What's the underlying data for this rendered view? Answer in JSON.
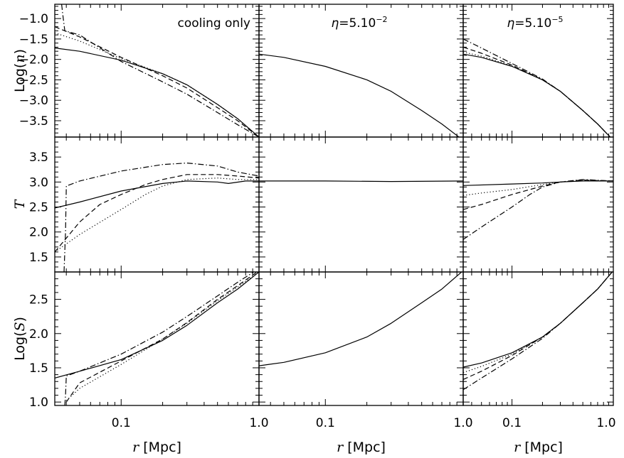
{
  "chart_data": {
    "type": "line",
    "layout": "3x3 grid of panels, shared x axis per column, shared y axis per row",
    "x_axis": {
      "label_var": "r",
      "label_unit": "[Mpc]",
      "scale": "log",
      "range": [
        0.033,
        1.0
      ],
      "ticks": [
        0.1,
        1.0
      ],
      "tick_labels": [
        "0.1",
        "1.0"
      ]
    },
    "columns": [
      {
        "title": "cooling only"
      },
      {
        "title_symbol": "η",
        "title_value": "=5.10",
        "title_exp": "−2"
      },
      {
        "title_symbol": "η",
        "title_value": "=5.10",
        "title_exp": "−5"
      }
    ],
    "rows": [
      {
        "ylabel_prefix": "Log(",
        "ylabel_var": "n",
        "ylabel_suffix": ")",
        "ylim": [
          -3.9,
          -0.65
        ],
        "ticks": [
          -3.5,
          -3.0,
          -2.5,
          -2.0,
          -1.5,
          -1.0
        ],
        "tick_labels": [
          "−3.5",
          "−3.0",
          "−2.5",
          "−2.0",
          "−1.5",
          "−1.0"
        ]
      },
      {
        "ylabel_var": "T",
        "ylim": [
          1.2,
          3.9
        ],
        "ticks": [
          1.5,
          2.0,
          2.5,
          3.0,
          3.5
        ],
        "tick_labels": [
          "1.5",
          "2.0",
          "2.5",
          "3.0",
          "3.5"
        ]
      },
      {
        "ylabel_prefix": "Log(",
        "ylabel_var": "S",
        "ylabel_suffix": ")",
        "ylim": [
          0.95,
          2.9
        ],
        "ticks": [
          1.0,
          1.5,
          2.0,
          2.5
        ],
        "tick_labels": [
          "1.0",
          "1.5",
          "2.0",
          "2.5"
        ]
      }
    ],
    "line_styles": [
      "solid",
      "dotted",
      "dashed",
      "dashdot"
    ],
    "panels": [
      [
        {
          "series": [
            {
              "style": "solid",
              "x": [
                0.033,
                0.05,
                0.1,
                0.2,
                0.3,
                0.5,
                0.7,
                1.0
              ],
              "y": [
                -1.72,
                -1.8,
                -2.02,
                -2.35,
                -2.62,
                -3.1,
                -3.45,
                -3.9
              ]
            },
            {
              "style": "dotted",
              "x": [
                0.033,
                0.05,
                0.1,
                0.2,
                0.3,
                0.5,
                0.7,
                1.0
              ],
              "y": [
                -1.35,
                -1.55,
                -1.98,
                -2.35,
                -2.62,
                -3.1,
                -3.45,
                -3.9
              ]
            },
            {
              "style": "dashed",
              "x": [
                0.033,
                0.05,
                0.1,
                0.2,
                0.3,
                0.5,
                0.7,
                1.0
              ],
              "y": [
                -1.2,
                -1.45,
                -1.95,
                -2.4,
                -2.7,
                -3.18,
                -3.5,
                -3.9
              ]
            },
            {
              "style": "dashdot",
              "x": [
                0.037,
                0.038,
                0.039,
                0.05,
                0.1,
                0.2,
                0.3,
                0.5,
                0.7,
                1.0
              ],
              "y": [
                -0.65,
                -1.0,
                -1.3,
                -1.4,
                -2.05,
                -2.55,
                -2.85,
                -3.3,
                -3.6,
                -3.9
              ]
            }
          ]
        },
        {
          "series": [
            {
              "style": "solid",
              "x": [
                0.033,
                0.05,
                0.1,
                0.2,
                0.3,
                0.5,
                0.7,
                1.0
              ],
              "y": [
                -1.87,
                -1.95,
                -2.17,
                -2.5,
                -2.78,
                -3.25,
                -3.58,
                -3.98
              ]
            }
          ]
        },
        {
          "series": [
            {
              "style": "solid",
              "x": [
                0.033,
                0.05,
                0.1,
                0.2,
                0.3,
                0.5,
                0.7,
                1.0
              ],
              "y": [
                -1.87,
                -1.95,
                -2.17,
                -2.5,
                -2.78,
                -3.25,
                -3.58,
                -3.98
              ]
            },
            {
              "style": "dotted",
              "x": [
                0.033,
                0.05,
                0.1,
                0.2,
                0.3,
                0.5,
                0.7,
                1.0
              ],
              "y": [
                -1.82,
                -1.92,
                -2.16,
                -2.5,
                -2.78,
                -3.25,
                -3.58,
                -3.98
              ]
            },
            {
              "style": "dashed",
              "x": [
                0.033,
                0.05,
                0.1,
                0.2,
                0.3,
                0.5,
                0.7,
                1.0
              ],
              "y": [
                -1.7,
                -1.85,
                -2.14,
                -2.5,
                -2.78,
                -3.25,
                -3.58,
                -3.98
              ]
            },
            {
              "style": "dashdot",
              "x": [
                0.033,
                0.05,
                0.1,
                0.2,
                0.3,
                0.5,
                0.7,
                1.0
              ],
              "y": [
                -1.5,
                -1.72,
                -2.1,
                -2.48,
                -2.78,
                -3.25,
                -3.58,
                -3.98
              ]
            }
          ]
        }
      ],
      [
        {
          "series": [
            {
              "style": "solid",
              "x": [
                0.033,
                0.05,
                0.1,
                0.2,
                0.3,
                0.5,
                0.6,
                0.8,
                1.0
              ],
              "y": [
                2.48,
                2.6,
                2.82,
                2.97,
                3.02,
                3.0,
                2.97,
                3.02,
                3.02
              ]
            },
            {
              "style": "dotted",
              "x": [
                0.033,
                0.05,
                0.1,
                0.15,
                0.2,
                0.3,
                0.5,
                0.7,
                1.0
              ],
              "y": [
                1.6,
                1.95,
                2.45,
                2.75,
                2.92,
                3.05,
                3.08,
                3.05,
                3.05
              ]
            },
            {
              "style": "dashed",
              "x": [
                0.033,
                0.05,
                0.07,
                0.1,
                0.15,
                0.2,
                0.3,
                0.5,
                0.7,
                1.0
              ],
              "y": [
                1.6,
                2.2,
                2.55,
                2.75,
                2.95,
                3.05,
                3.15,
                3.15,
                3.12,
                3.08
              ]
            },
            {
              "style": "dashdot",
              "x": [
                0.0385,
                0.0395,
                0.04,
                0.05,
                0.1,
                0.2,
                0.3,
                0.5,
                0.7,
                1.0
              ],
              "y": [
                1.2,
                2.0,
                2.92,
                3.02,
                3.22,
                3.35,
                3.38,
                3.32,
                3.2,
                3.12
              ]
            }
          ]
        },
        {
          "series": [
            {
              "style": "solid",
              "x": [
                0.033,
                0.1,
                0.3,
                1.0
              ],
              "y": [
                3.02,
                3.02,
                3.01,
                3.02
              ]
            }
          ]
        },
        {
          "series": [
            {
              "style": "solid",
              "x": [
                0.033,
                0.1,
                0.2,
                0.3,
                0.5,
                1.0
              ],
              "y": [
                2.93,
                2.96,
                2.98,
                3.0,
                3.02,
                3.02
              ]
            },
            {
              "style": "dotted",
              "x": [
                0.033,
                0.05,
                0.1,
                0.2,
                0.3,
                0.5,
                1.0
              ],
              "y": [
                2.73,
                2.78,
                2.85,
                2.95,
                3.0,
                3.03,
                3.02
              ]
            },
            {
              "style": "dashed",
              "x": [
                0.033,
                0.05,
                0.1,
                0.2,
                0.3,
                0.5,
                1.0
              ],
              "y": [
                2.45,
                2.55,
                2.75,
                2.92,
                3.0,
                3.04,
                3.02
              ]
            },
            {
              "style": "dashdot",
              "x": [
                0.033,
                0.05,
                0.1,
                0.15,
                0.2,
                0.3,
                0.5,
                1.0
              ],
              "y": [
                1.85,
                2.1,
                2.5,
                2.75,
                2.9,
                3.0,
                3.05,
                3.02
              ]
            }
          ]
        }
      ],
      [
        {
          "series": [
            {
              "style": "solid",
              "x": [
                0.033,
                0.05,
                0.1,
                0.2,
                0.3,
                0.5,
                0.7,
                1.0
              ],
              "y": [
                1.35,
                1.45,
                1.62,
                1.9,
                2.12,
                2.45,
                2.65,
                2.9
              ]
            },
            {
              "style": "dotted",
              "x": [
                0.04,
                0.05,
                0.1,
                0.2,
                0.3,
                0.5,
                0.7,
                1.0
              ],
              "y": [
                1.02,
                1.2,
                1.55,
                1.92,
                2.15,
                2.48,
                2.68,
                2.9
              ]
            },
            {
              "style": "dashed",
              "x": [
                0.04,
                0.05,
                0.1,
                0.2,
                0.3,
                0.5,
                0.7,
                1.0
              ],
              "y": [
                1.0,
                1.28,
                1.6,
                1.92,
                2.16,
                2.5,
                2.7,
                2.92
              ]
            },
            {
              "style": "dashdot",
              "x": [
                0.039,
                0.0395,
                0.04,
                0.05,
                0.1,
                0.2,
                0.3,
                0.5,
                0.7,
                1.0
              ],
              "y": [
                0.95,
                1.1,
                1.38,
                1.45,
                1.7,
                2.02,
                2.25,
                2.55,
                2.75,
                2.95
              ]
            }
          ]
        },
        {
          "series": [
            {
              "style": "solid",
              "x": [
                0.033,
                0.05,
                0.1,
                0.2,
                0.3,
                0.5,
                0.7,
                1.0
              ],
              "y": [
                1.53,
                1.58,
                1.72,
                1.95,
                2.15,
                2.45,
                2.65,
                2.92
              ]
            }
          ]
        },
        {
          "series": [
            {
              "style": "solid",
              "x": [
                0.033,
                0.05,
                0.1,
                0.2,
                0.3,
                0.5,
                0.7,
                1.0
              ],
              "y": [
                1.51,
                1.57,
                1.72,
                1.95,
                2.15,
                2.45,
                2.65,
                2.92
              ]
            },
            {
              "style": "dotted",
              "x": [
                0.033,
                0.05,
                0.1,
                0.2,
                0.3,
                0.5,
                0.7,
                1.0
              ],
              "y": [
                1.43,
                1.52,
                1.7,
                1.95,
                2.15,
                2.45,
                2.65,
                2.92
              ]
            },
            {
              "style": "dashed",
              "x": [
                0.033,
                0.05,
                0.1,
                0.2,
                0.3,
                0.5,
                0.7,
                1.0
              ],
              "y": [
                1.33,
                1.45,
                1.68,
                1.95,
                2.15,
                2.45,
                2.65,
                2.92
              ]
            },
            {
              "style": "dashdot",
              "x": [
                0.033,
                0.05,
                0.1,
                0.2,
                0.3,
                0.5,
                0.7,
                1.0
              ],
              "y": [
                1.18,
                1.35,
                1.63,
                1.93,
                2.15,
                2.45,
                2.65,
                2.92
              ]
            }
          ]
        }
      ]
    ]
  }
}
